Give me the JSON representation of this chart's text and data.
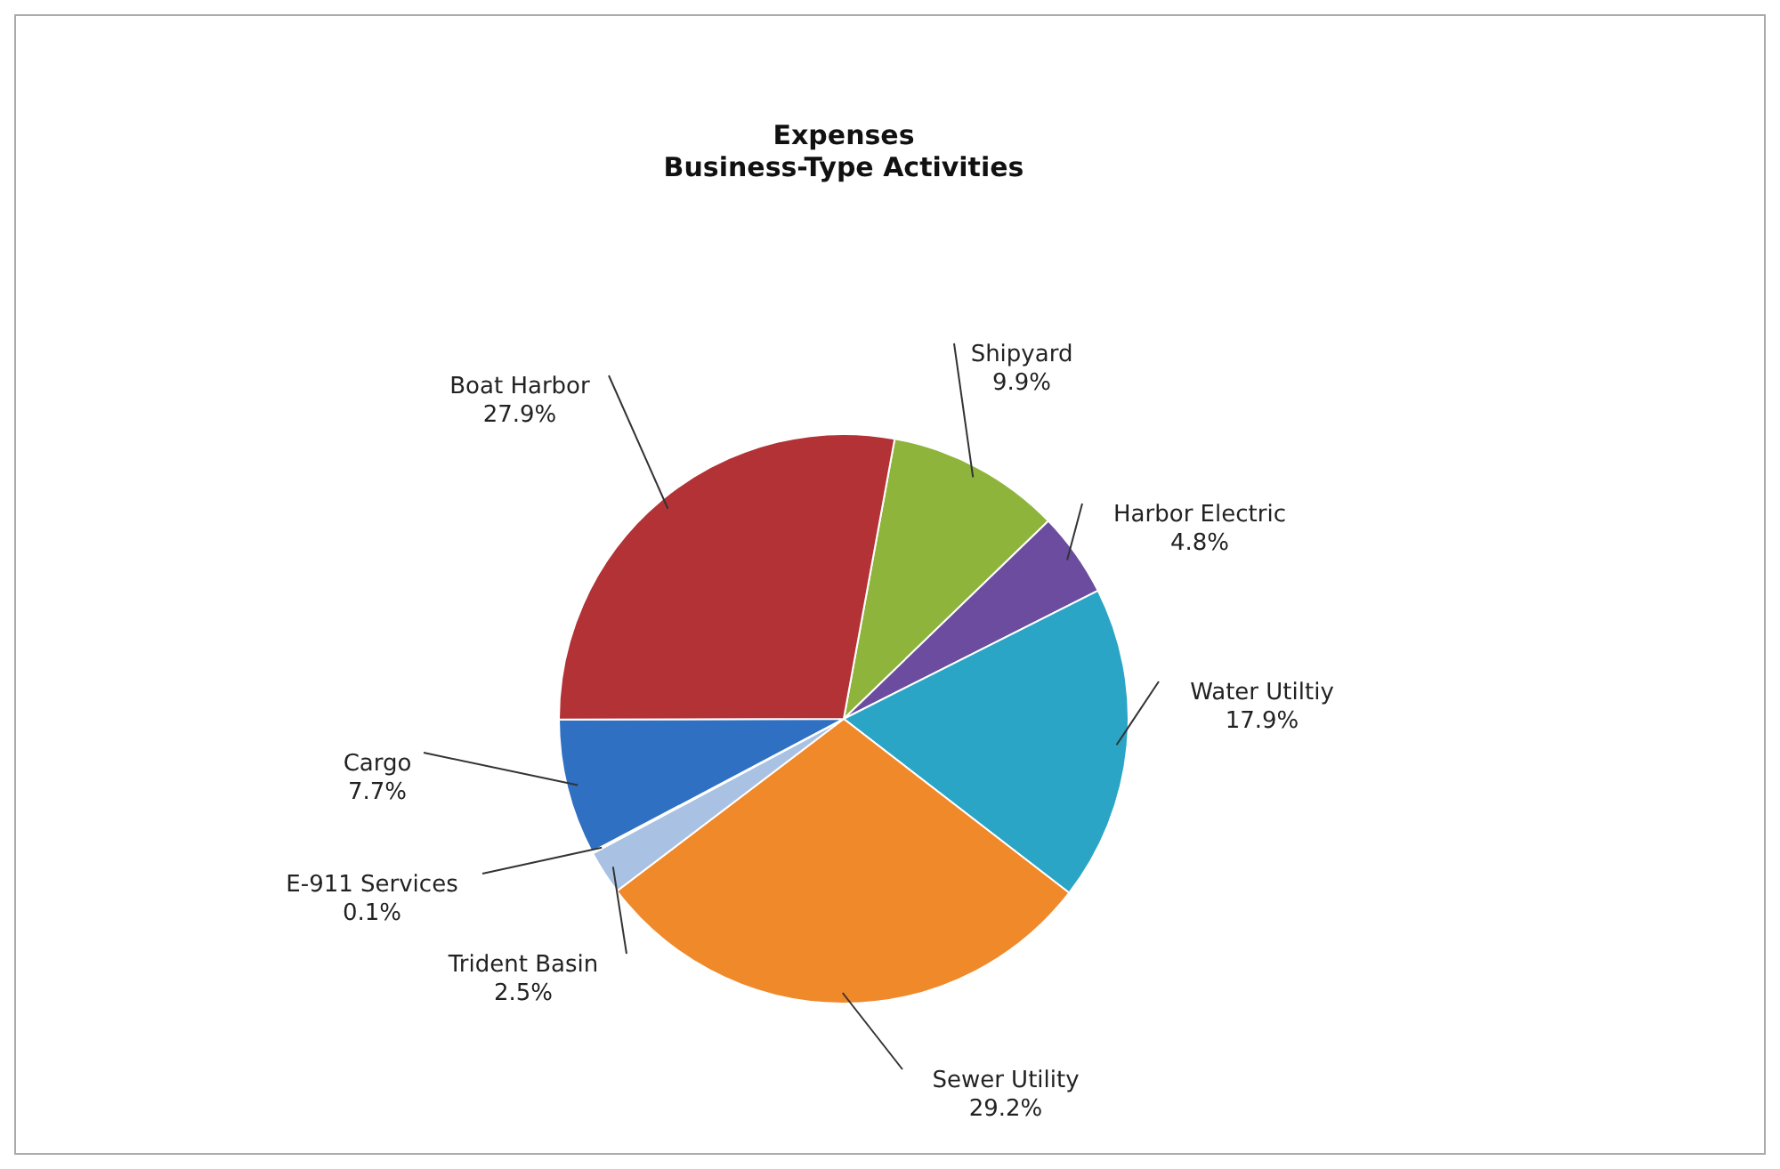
{
  "chart_data": {
    "type": "pie",
    "title": "Expenses",
    "subtitle": "Business-Type Activities",
    "categories": [
      "Shipyard",
      "Harbor Electric",
      "Water Utiltiy",
      "Sewer Utility",
      "Trident Basin",
      "E-911 Services",
      "Cargo",
      "Boat Harbor"
    ],
    "values": [
      9.9,
      4.8,
      17.9,
      29.2,
      2.5,
      0.1,
      7.7,
      27.9
    ],
    "value_labels": [
      "9.9%",
      "4.8%",
      "17.9%",
      "29.2%",
      "2.5%",
      "0.1%",
      "7.7%",
      "27.9%"
    ],
    "colors": [
      "#8fb43c",
      "#6b4c9e",
      "#2ba5c6",
      "#f0892a",
      "#a9c2e3",
      "#5a7fc0",
      "#2f70c2",
      "#b23236"
    ],
    "legend": false
  }
}
